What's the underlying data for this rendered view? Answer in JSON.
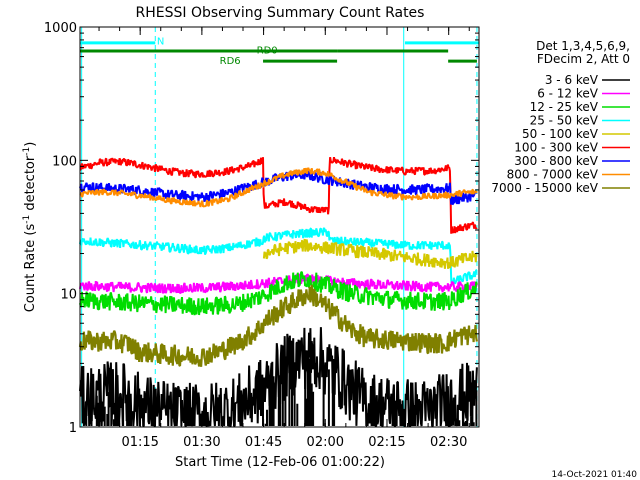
{
  "chart_data": {
    "type": "line",
    "title": "RHESSI Observing Summary Count Rates",
    "ylabel_parts": [
      "Count Rate (s",
      "-1",
      " detector",
      "-1",
      ")"
    ],
    "xlabel": "Start Time (12-Feb-06 01:00:22)",
    "timestamp": "14-Oct-2021 01:40",
    "y_scale": "log",
    "ylim": [
      1,
      1000
    ],
    "xlim_minutes": [
      0,
      97
    ],
    "y_ticks": [
      {
        "value": 1,
        "label": "1"
      },
      {
        "value": 10,
        "label": "10"
      },
      {
        "value": 100,
        "label": "100"
      },
      {
        "value": 1000,
        "label": "1000"
      }
    ],
    "x_ticks": [
      {
        "minutes": 14.63,
        "label": "01:15"
      },
      {
        "minutes": 29.63,
        "label": "01:30"
      },
      {
        "minutes": 44.63,
        "label": "01:45"
      },
      {
        "minutes": 59.63,
        "label": "02:00"
      },
      {
        "minutes": 74.63,
        "label": "02:15"
      },
      {
        "minutes": 89.63,
        "label": "02:30"
      }
    ],
    "legend_header": [
      "Det 1,3,4,5,6,9,",
      "FDecim 2, Att 0"
    ],
    "legend_placement": "right",
    "series": [
      {
        "name": "3 - 6 keV",
        "color": "#000000"
      },
      {
        "name": "6 - 12 keV",
        "color": "#ff00ff"
      },
      {
        "name": "12 - 25 keV",
        "color": "#00dd00"
      },
      {
        "name": "25 - 50 keV",
        "color": "#00ffff"
      },
      {
        "name": "50 - 100 keV",
        "color": "#d4c800"
      },
      {
        "name": "100 - 300 keV",
        "color": "#ff0000"
      },
      {
        "name": "300 - 800 keV",
        "color": "#0000ff"
      },
      {
        "name": "800 - 7000 keV",
        "color": "#ff8c00"
      },
      {
        "name": "7000 - 15000 keV",
        "color": "#808000"
      }
    ],
    "curves": [
      {
        "series": 5,
        "noise": 0.03,
        "points": [
          [
            0,
            88
          ],
          [
            5,
            96
          ],
          [
            10,
            98
          ],
          [
            15,
            92
          ],
          [
            20,
            85
          ],
          [
            25,
            80
          ],
          [
            30,
            79
          ],
          [
            36,
            83
          ],
          [
            42,
            92
          ],
          [
            44.5,
            102
          ],
          [
            44.7,
            45
          ],
          [
            50,
            49
          ],
          [
            56,
            43
          ],
          [
            60.5,
            42
          ],
          [
            60.7,
            102
          ],
          [
            66,
            93
          ],
          [
            72,
            86
          ],
          [
            79,
            83
          ],
          [
            86,
            84
          ],
          [
            90,
            88
          ],
          [
            90.2,
            30
          ],
          [
            94,
            32
          ],
          [
            96.5,
            33
          ]
        ]
      },
      {
        "series": 6,
        "noise": 0.04,
        "points": [
          [
            0,
            64
          ],
          [
            6,
            62
          ],
          [
            14,
            60
          ],
          [
            22,
            55
          ],
          [
            30,
            53
          ],
          [
            36,
            57
          ],
          [
            42,
            65
          ],
          [
            50,
            76
          ],
          [
            55,
            78
          ],
          [
            60,
            72
          ],
          [
            64,
            68
          ],
          [
            70,
            63
          ],
          [
            76,
            61
          ],
          [
            82,
            60
          ],
          [
            86,
            61
          ],
          [
            90,
            62
          ],
          [
            90.2,
            50
          ],
          [
            93,
            52
          ],
          [
            96.5,
            55
          ]
        ]
      },
      {
        "series": 7,
        "noise": 0.025,
        "points": [
          [
            0,
            56
          ],
          [
            6,
            58
          ],
          [
            14,
            55
          ],
          [
            22,
            50
          ],
          [
            30,
            47
          ],
          [
            36,
            51
          ],
          [
            42,
            62
          ],
          [
            50,
            78
          ],
          [
            55,
            84
          ],
          [
            60,
            80
          ],
          [
            64,
            70
          ],
          [
            70,
            58
          ],
          [
            76,
            54
          ],
          [
            82,
            53
          ],
          [
            86,
            54
          ],
          [
            90,
            55
          ],
          [
            90.2,
            55
          ],
          [
            93,
            57
          ],
          [
            96.5,
            58
          ]
        ]
      },
      {
        "series": 3,
        "noise": 0.035,
        "points": [
          [
            0,
            25
          ],
          [
            8,
            24
          ],
          [
            16,
            23
          ],
          [
            24,
            22
          ],
          [
            30,
            21
          ],
          [
            36,
            22
          ],
          [
            42,
            24
          ],
          [
            44.5,
            25
          ],
          [
            44.7,
            26
          ],
          [
            52,
            28
          ],
          [
            60.5,
            29
          ],
          [
            60.7,
            25
          ],
          [
            70,
            24
          ],
          [
            80,
            23
          ],
          [
            90,
            23
          ],
          [
            90.2,
            12
          ],
          [
            93,
            13
          ],
          [
            96.5,
            14
          ]
        ]
      },
      {
        "series": 4,
        "noise": 0.05,
        "points": [
          [
            44.7,
            20
          ],
          [
            50,
            22
          ],
          [
            55,
            23
          ],
          [
            60.5,
            22
          ],
          [
            90.2,
            17
          ],
          [
            93,
            18
          ],
          [
            96.5,
            19
          ]
        ]
      },
      {
        "series": 1,
        "noise": 0.04,
        "points": [
          [
            0,
            11.5
          ],
          [
            10,
            11.2
          ],
          [
            20,
            11
          ],
          [
            30,
            11
          ],
          [
            40,
            11.5
          ],
          [
            50,
            12.5
          ],
          [
            55,
            13
          ],
          [
            60,
            12.5
          ],
          [
            66,
            12
          ],
          [
            76,
            11.5
          ],
          [
            86,
            11.2
          ],
          [
            96.5,
            11.3
          ]
        ]
      },
      {
        "series": 2,
        "noise": 0.07,
        "points": [
          [
            0,
            9
          ],
          [
            10,
            8.6
          ],
          [
            20,
            8.3
          ],
          [
            30,
            8
          ],
          [
            38,
            8.3
          ],
          [
            44,
            9.5
          ],
          [
            50,
            12
          ],
          [
            55,
            13
          ],
          [
            60,
            11.5
          ],
          [
            66,
            10
          ],
          [
            76,
            9
          ],
          [
            86,
            8.7
          ],
          [
            90,
            8.8
          ],
          [
            93,
            10
          ],
          [
            96.5,
            11
          ]
        ]
      },
      {
        "series": 8,
        "noise": 0.08,
        "points": [
          [
            0,
            4.4
          ],
          [
            8,
            4.4
          ],
          [
            12,
            4.2
          ],
          [
            14,
            3.7
          ],
          [
            20,
            3.5
          ],
          [
            26,
            3.4
          ],
          [
            30,
            3.4
          ],
          [
            34,
            3.7
          ],
          [
            38,
            4.2
          ],
          [
            42,
            5
          ],
          [
            46,
            6.5
          ],
          [
            50,
            8
          ],
          [
            54,
            9.5
          ],
          [
            56,
            10
          ],
          [
            58,
            9
          ],
          [
            62,
            7
          ],
          [
            66,
            5.3
          ],
          [
            70,
            4.6
          ],
          [
            80,
            4.4
          ],
          [
            88,
            4.2
          ],
          [
            90,
            4.4
          ],
          [
            92,
            4.8
          ],
          [
            96.5,
            5
          ]
        ]
      },
      {
        "series": 0,
        "noise": 0.25,
        "points": [
          [
            0,
            1.6
          ],
          [
            4,
            1.7
          ],
          [
            8,
            1.8
          ],
          [
            12,
            1.7
          ],
          [
            14,
            1.5
          ],
          [
            20,
            1.3
          ],
          [
            26,
            1.2
          ],
          [
            32,
            1.25
          ],
          [
            38,
            1.4
          ],
          [
            42,
            1.7
          ],
          [
            46,
            2.1
          ],
          [
            50,
            2.8
          ],
          [
            54,
            3.4
          ],
          [
            58,
            3.3
          ],
          [
            62,
            2.6
          ],
          [
            66,
            1.9
          ],
          [
            70,
            1.5
          ],
          [
            76,
            1.4
          ],
          [
            82,
            1.3
          ],
          [
            86,
            1.35
          ],
          [
            90,
            1.6
          ],
          [
            93,
            1.7
          ],
          [
            96.5,
            1.8
          ]
        ]
      }
    ],
    "spike_bands": [
      {
        "series": 0,
        "from": 1.2,
        "to": 12.5,
        "base": 1.0,
        "top": 1.9,
        "density": 0.6
      },
      {
        "series": 0,
        "from": 44.5,
        "to": 62,
        "base": 1.0,
        "top": 3.6,
        "density": 0.5
      },
      {
        "series": 0,
        "from": 89,
        "to": 96.5,
        "base": 1.0,
        "top": 1.9,
        "density": 0.6
      }
    ],
    "state_bars": [
      {
        "label": "N",
        "color": "#00ffff",
        "y_value": 760,
        "spans": [
          [
            0,
            18.3
          ],
          [
            79,
            97
          ]
        ]
      },
      {
        "label": "RD0",
        "color": "#008800",
        "y_value": 660,
        "spans": [
          [
            0,
            62.5
          ],
          [
            62.5,
            89.5
          ]
        ]
      },
      {
        "label": "RD6",
        "color": "#008800",
        "y_value": 555,
        "spans": [
          [
            44.5,
            62.5
          ],
          [
            89.5,
            96.5
          ]
        ]
      }
    ],
    "state_labels": [
      {
        "text": "N",
        "color": "#00ffff",
        "minutes": 19.6,
        "y_value": 790
      },
      {
        "text": "RD0",
        "color": "#008800",
        "minutes": 45.5,
        "y_value": 680
      },
      {
        "text": "RD6",
        "color": "#008800",
        "minutes": 36.5,
        "y_value": 565
      }
    ],
    "night_solid_lines_minutes": [
      0.4,
      78.7
    ],
    "night_dashed_lines_minutes": [
      18.3,
      96.5
    ]
  }
}
